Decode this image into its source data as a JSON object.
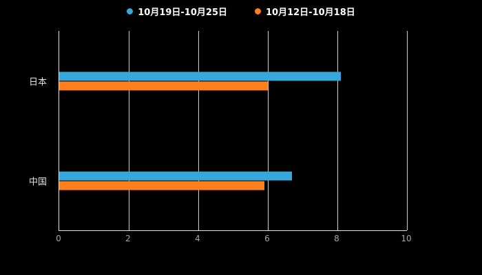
{
  "chart_data": {
    "type": "bar",
    "orientation": "horizontal",
    "title": "",
    "categories": [
      "日本",
      "中国"
    ],
    "series": [
      {
        "name": "10月19日-10月25日",
        "color": "#38A8DC",
        "values": [
          8.1,
          6.7
        ]
      },
      {
        "name": "10月12日-10月18日",
        "color": "#FF7F1E",
        "values": [
          6.0,
          5.9
        ]
      }
    ],
    "xlim": [
      0,
      10
    ],
    "xticks": [
      0,
      2,
      4,
      6,
      8,
      10
    ],
    "grid": true,
    "legend_position": "top",
    "background": "#000000",
    "axis_color": "#e6e6e6",
    "gridline_color": "#cfcfcf",
    "tick_label_color": "#a8a8a8",
    "category_label_color": "#e0e0e0"
  }
}
